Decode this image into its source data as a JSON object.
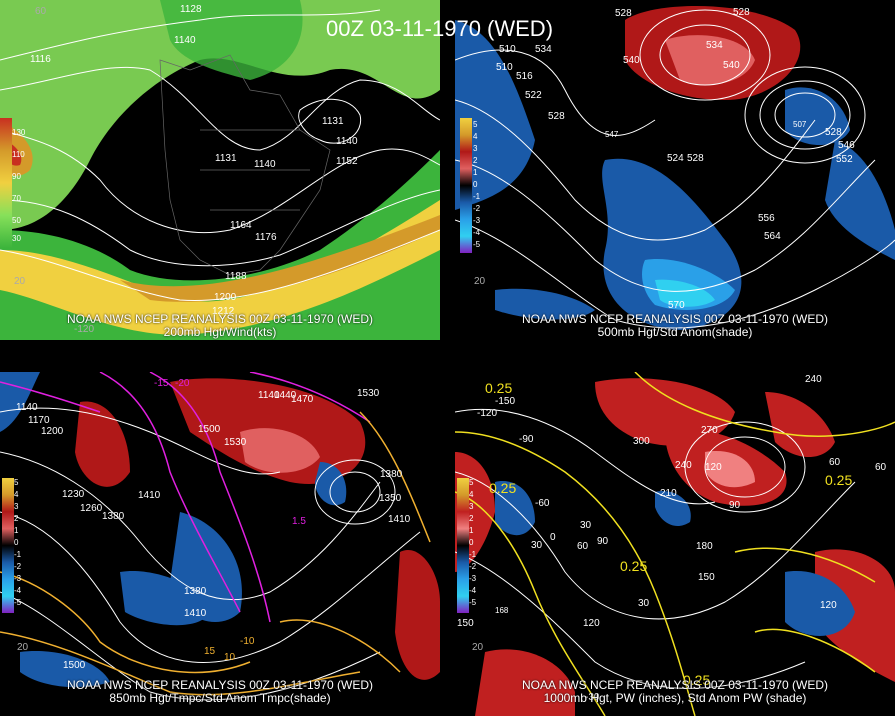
{
  "title": "00Z 03-11-1970 (WED)",
  "panels": [
    {
      "id": "p1",
      "caption_line1": "NOAA NWS NCEP REANALYSIS 00Z 03-11-1970 (WED)",
      "caption_line2": "200mb Hgt/Wind(kts)",
      "colorbar_labels": [
        "130",
        "110",
        "90",
        "70",
        "50",
        "30"
      ],
      "contour_labels": [
        "1128",
        "1140",
        "1116",
        "1131",
        "1140",
        "1152",
        "1140",
        "1164",
        "1176",
        "1188",
        "1200",
        "1212",
        "1131"
      ],
      "lon_labels": [
        "60",
        "-120",
        "20"
      ],
      "colors": {
        "light_green": "#86e05a",
        "green": "#3cb43c",
        "yellow": "#f0d040",
        "orange": "#d49a2a",
        "brown": "#b07820",
        "red": "#c83020"
      }
    },
    {
      "id": "p2",
      "caption_line1": "NOAA NWS NCEP REANALYSIS 00Z 03-11-1970 (WED)",
      "caption_line2": "500mb Hgt/Std Anom(shade)",
      "colorbar_labels": [
        "5",
        "4",
        "3",
        "2",
        "1",
        "0",
        "-1",
        "-2",
        "-3",
        "-4",
        "-5"
      ],
      "contour_labels": [
        "528",
        "528",
        "534",
        "510",
        "516",
        "540",
        "522",
        "528",
        "534",
        "540",
        "528",
        "546",
        "552",
        "524",
        "528",
        "556",
        "564",
        "570",
        "510",
        "507",
        "547"
      ],
      "lon_labels": [
        "20"
      ],
      "colors": {
        "red": "#b01818",
        "pink": "#e06060",
        "blue": "#1a5aa8",
        "light_blue": "#2aa0e8",
        "cyan": "#30d0f0"
      }
    },
    {
      "id": "p3",
      "caption_line1": "NOAA NWS NCEP REANALYSIS 00Z 03-11-1970 (WED)",
      "caption_line2": "850mb Hgt/Tmpc/Std Anom Tmpc(shade)",
      "colorbar_labels": [
        "5",
        "4",
        "3",
        "2",
        "1",
        "0",
        "-1",
        "-2",
        "-3",
        "-4",
        "-5"
      ],
      "contour_labels": [
        "1140",
        "1170",
        "1200",
        "1230",
        "1260",
        "1380",
        "1410",
        "1500",
        "1530",
        "1440",
        "1470",
        "1530",
        "1350",
        "1410",
        "1380",
        "1140",
        "1380",
        "1410",
        "1500",
        "-10",
        "-15",
        "-20",
        "1.5",
        "15",
        "10"
      ],
      "lon_labels": [
        "20"
      ],
      "colors": {
        "magenta": "#e020e0",
        "orange": "#f0b030",
        "red": "#b01818",
        "blue": "#1a5aa8"
      }
    },
    {
      "id": "p4",
      "caption_line1": "NOAA NWS NCEP REANALYSIS 00Z 03-11-1970 (WED)",
      "caption_line2": "1000mb Hgt, PW (inches), Std Anom PW (shade)",
      "colorbar_labels": [
        "5",
        "4",
        "3",
        "2",
        "1",
        "0",
        "-1",
        "-2",
        "-3",
        "-4",
        "-5"
      ],
      "contour_labels": [
        "0.25",
        "-120",
        "-150",
        "240",
        "-90",
        "300",
        "270",
        "240",
        "120",
        "60",
        "60",
        "0.25",
        "0.25",
        "-60",
        "30",
        "0",
        "60",
        "90",
        "210",
        "90",
        "180",
        "0.25",
        "150",
        "30",
        "120",
        "150",
        "120",
        "-30",
        "168",
        "0.25",
        "30"
      ],
      "lon_labels": [
        "20"
      ],
      "colors": {
        "yellow": "#f0e020",
        "red": "#c02020",
        "pink": "#f08080",
        "blue": "#1a5aa8"
      }
    }
  ]
}
